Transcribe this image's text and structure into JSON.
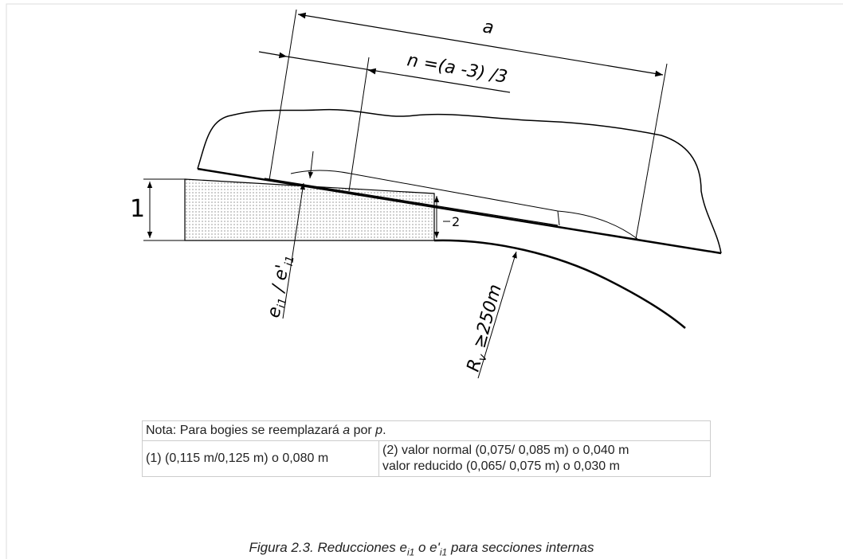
{
  "drawing": {
    "dim_a": "a",
    "dim_n": "n =(a -3) /3",
    "label_1": "1",
    "label_2": "2",
    "label_e": {
      "parts": [
        "e",
        "i1",
        " / e'",
        "i1"
      ]
    },
    "label_r": {
      "parts": [
        "R",
        "v",
        " ≥250m"
      ]
    }
  },
  "table": {
    "note": {
      "parts": [
        "Nota: Para bogies se reemplazará ",
        "a",
        " por ",
        "p",
        "."
      ]
    },
    "rows": [
      [
        "(1) (0,115 m/0,125 m) o 0,080 m",
        [
          "(2) valor normal (0,075/ 0,085 m) o 0,040 m",
          "valor reducido (0,065/ 0,075 m) o 0,030 m"
        ]
      ]
    ]
  },
  "caption": {
    "parts": [
      "Figura 2.3. Reducciones e",
      "i1",
      " o e'",
      "i1",
      " para secciones internas"
    ]
  }
}
